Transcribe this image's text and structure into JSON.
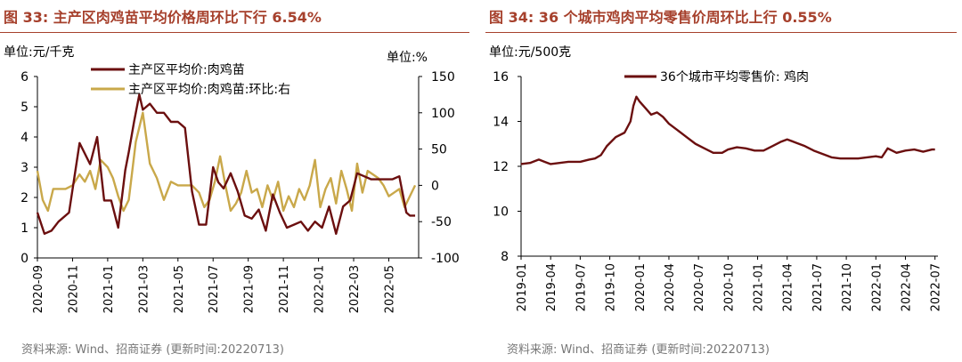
{
  "colors": {
    "title": "#a6402c",
    "series_dark": "#6b0f0f",
    "series_gold": "#c9a84a",
    "neg_tick": "#ff0000",
    "source": "#777777"
  },
  "left": {
    "title": "图 33:  主产区肉鸡苗平均价格周环比下行 6.54%",
    "source": "资料来源: Wind、招商证券 (更新时间:20220713)"
  },
  "right": {
    "title": "图 34:  36 个城市鸡肉平均零售价周环比上行 0.55%",
    "source": "资料来源: Wind、招商证券 (更新时间:20220713)"
  },
  "chart_data": [
    {
      "type": "line",
      "ylabel": "单位:元/千克",
      "y2label": "单位:%",
      "ylim": [
        0,
        6
      ],
      "yticks": [
        "0",
        "1",
        "2",
        "3",
        "4",
        "5",
        "6"
      ],
      "y2lim": [
        -100,
        150
      ],
      "y2ticks": [
        "-100",
        "-50",
        "0",
        "50",
        "100",
        "150"
      ],
      "categories": [
        "2020-09",
        "2020-11",
        "2021-01",
        "2021-03",
        "2021-05",
        "2021-07",
        "2021-09",
        "2021-11",
        "2022-01",
        "2022-03",
        "2022-05"
      ],
      "x_range": [
        0,
        21.7
      ],
      "series": [
        {
          "name": "主产区平均价:肉鸡苗",
          "axis": "left",
          "x": [
            0,
            0.4,
            0.8,
            1.2,
            1.8,
            2.4,
            3.0,
            3.4,
            3.8,
            4.2,
            4.6,
            5.0,
            5.2,
            5.5,
            5.8,
            6.0,
            6.4,
            6.8,
            7.2,
            7.6,
            8.0,
            8.4,
            8.8,
            9.2,
            9.6,
            10.0,
            10.3,
            10.6,
            11.0,
            11.4,
            11.8,
            12.2,
            12.6,
            13.0,
            13.4,
            13.8,
            14.2,
            14.6,
            15.0,
            15.4,
            15.8,
            16.2,
            16.6,
            17.0,
            17.4,
            17.8,
            18.2,
            18.6,
            19.0,
            19.4,
            19.8,
            20.2,
            20.6,
            21.0,
            21.2,
            21.5
          ],
          "values": [
            1.5,
            0.8,
            0.9,
            1.2,
            1.5,
            3.8,
            3.1,
            4.0,
            1.9,
            1.9,
            1.0,
            2.9,
            3.5,
            4.5,
            5.4,
            4.9,
            5.1,
            4.8,
            4.8,
            4.5,
            4.5,
            4.3,
            2.2,
            1.1,
            1.1,
            3.0,
            2.5,
            2.3,
            2.8,
            2.2,
            1.4,
            1.3,
            1.6,
            0.9,
            2.1,
            1.5,
            1.0,
            1.1,
            1.2,
            0.9,
            1.2,
            1.0,
            1.7,
            0.8,
            1.7,
            1.9,
            2.8,
            2.7,
            2.6,
            2.6,
            2.6,
            2.6,
            2.7,
            1.5,
            1.4,
            1.4
          ]
        },
        {
          "name": "主产区平均价:肉鸡苗:环比:右",
          "axis": "right",
          "x": [
            0,
            0.3,
            0.6,
            0.9,
            1.2,
            1.6,
            2.0,
            2.4,
            2.7,
            3.0,
            3.3,
            3.6,
            4.0,
            4.3,
            4.6,
            4.9,
            5.2,
            5.6,
            6.0,
            6.4,
            6.8,
            7.2,
            7.6,
            8.0,
            8.4,
            8.8,
            9.2,
            9.5,
            9.8,
            10.1,
            10.4,
            10.7,
            11.0,
            11.3,
            11.6,
            11.9,
            12.2,
            12.5,
            12.8,
            13.1,
            13.4,
            13.7,
            14.0,
            14.3,
            14.6,
            14.9,
            15.2,
            15.5,
            15.8,
            16.1,
            16.4,
            16.7,
            17.0,
            17.3,
            17.6,
            17.9,
            18.2,
            18.5,
            18.8,
            19.1,
            19.4,
            19.7,
            20.0,
            20.3,
            20.6,
            20.9,
            21.2,
            21.5
          ],
          "values": [
            20,
            -20,
            -35,
            -5,
            -5,
            -5,
            0,
            15,
            5,
            20,
            -5,
            35,
            25,
            10,
            -15,
            -35,
            -20,
            60,
            100,
            30,
            10,
            -20,
            5,
            0,
            0,
            0,
            -10,
            -30,
            -20,
            5,
            40,
            0,
            -35,
            -25,
            -10,
            20,
            -10,
            -5,
            -30,
            0,
            -20,
            5,
            -35,
            -15,
            -30,
            -5,
            -20,
            0,
            35,
            -30,
            -5,
            10,
            -25,
            20,
            -5,
            -35,
            30,
            -10,
            20,
            15,
            10,
            0,
            -15,
            -10,
            -5,
            -30,
            -15,
            0
          ]
        }
      ]
    },
    {
      "type": "line",
      "ylabel": "单位:元/500克",
      "ylim": [
        8,
        16
      ],
      "yticks": [
        "8",
        "10",
        "12",
        "14",
        "16"
      ],
      "categories": [
        "2019-01",
        "2019-04",
        "2019-07",
        "2019-10",
        "2020-01",
        "2020-04",
        "2020-07",
        "2020-10",
        "2021-01",
        "2021-04",
        "2021-07",
        "2021-10",
        "2022-01",
        "2022-04",
        "2022-07"
      ],
      "x_range": [
        0,
        14.1
      ],
      "series": [
        {
          "name": "36个城市平均零售价: 鸡肉",
          "x": [
            0,
            0.3,
            0.6,
            0.8,
            1.0,
            1.3,
            1.6,
            2.0,
            2.3,
            2.5,
            2.7,
            2.9,
            3.2,
            3.5,
            3.7,
            3.8,
            3.9,
            4.0,
            4.2,
            4.4,
            4.6,
            4.8,
            5.0,
            5.3,
            5.6,
            5.9,
            6.2,
            6.5,
            6.8,
            7.0,
            7.3,
            7.6,
            7.9,
            8.2,
            8.5,
            8.8,
            9.0,
            9.3,
            9.6,
            9.9,
            10.2,
            10.5,
            10.8,
            11.1,
            11.4,
            11.7,
            12.0,
            12.2,
            12.4,
            12.7,
            13.0,
            13.3,
            13.6,
            13.9,
            14.0
          ],
          "values": [
            12.1,
            12.15,
            12.3,
            12.2,
            12.1,
            12.15,
            12.2,
            12.2,
            12.3,
            12.35,
            12.5,
            12.9,
            13.3,
            13.5,
            14.0,
            14.7,
            15.1,
            14.9,
            14.6,
            14.3,
            14.4,
            14.2,
            13.9,
            13.6,
            13.3,
            13.0,
            12.8,
            12.6,
            12.6,
            12.75,
            12.85,
            12.8,
            12.7,
            12.7,
            12.9,
            13.1,
            13.2,
            13.05,
            12.9,
            12.7,
            12.55,
            12.4,
            12.35,
            12.35,
            12.35,
            12.4,
            12.45,
            12.4,
            12.8,
            12.6,
            12.7,
            12.75,
            12.65,
            12.75,
            12.75
          ]
        }
      ]
    }
  ]
}
